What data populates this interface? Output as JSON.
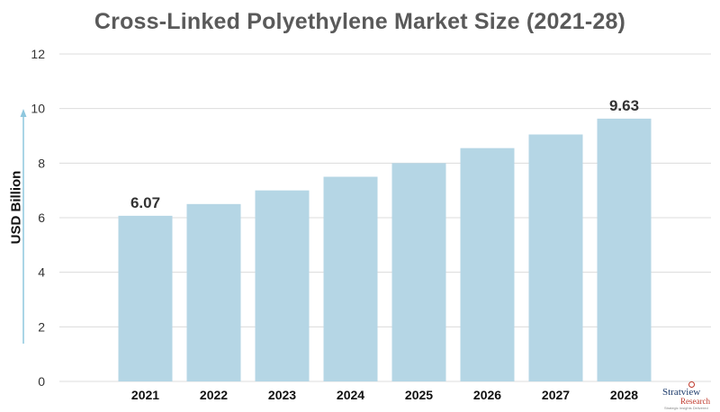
{
  "title": "Cross-Linked Polyethylene Market Size (2021-28)",
  "ylabel": "USD Billion",
  "colors": {
    "bar": "#b5d6e5",
    "grid": "#dcdcdc",
    "arrow": "#8ec7de"
  },
  "logo": {
    "name": "Stratview",
    "sub": "Research",
    "tagline": "Strategic Insights Delivered"
  },
  "chart_data": {
    "type": "bar",
    "title": "Cross-Linked Polyethylene Market Size (2021-28)",
    "xlabel": "",
    "ylabel": "USD Billion",
    "categories": [
      "2021",
      "2022",
      "2023",
      "2024",
      "2025",
      "2026",
      "2027",
      "2028"
    ],
    "values": [
      6.07,
      6.5,
      7.0,
      7.5,
      8.0,
      8.55,
      9.05,
      9.63
    ],
    "data_labels": {
      "2021": "6.07",
      "2028": "9.63"
    },
    "ylim": [
      0,
      12
    ],
    "yticks": [
      0,
      2,
      4,
      6,
      8,
      10,
      12
    ],
    "grid": true,
    "legend": "none"
  }
}
